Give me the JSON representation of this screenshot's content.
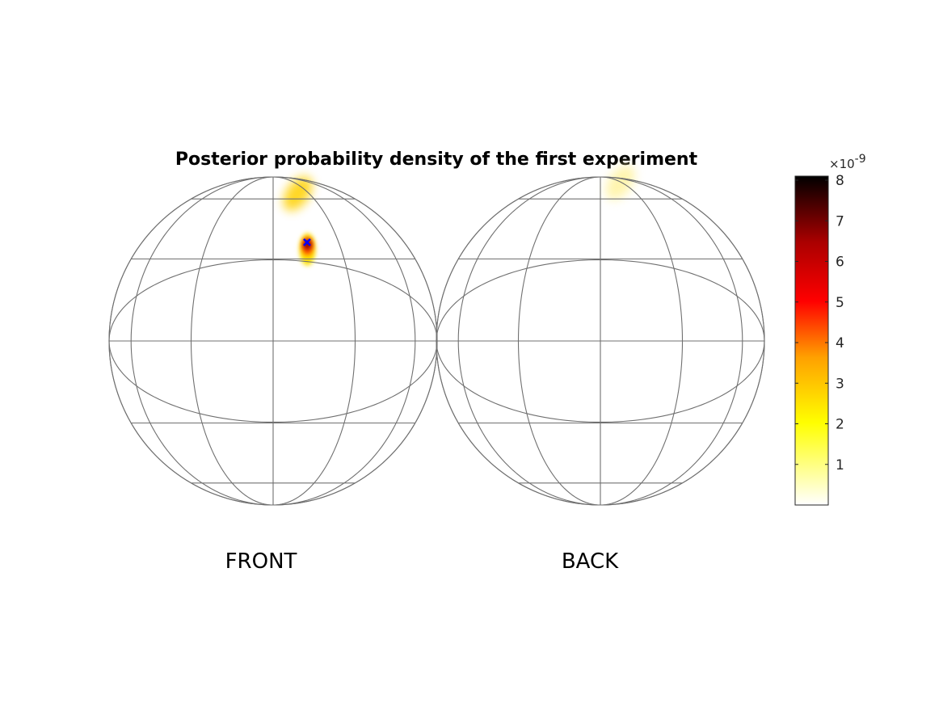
{
  "chart_data": {
    "type": "heatmap",
    "title": "Posterior probability density of the first experiment",
    "panels": [
      {
        "name": "FRONT",
        "label": "FRONT"
      },
      {
        "name": "BACK",
        "label": "BACK"
      }
    ],
    "colorbar": {
      "colormap": "hot (reversed)",
      "range": [
        0,
        8.1
      ],
      "ticks": [
        1,
        2,
        3,
        4,
        5,
        6,
        7,
        8
      ],
      "tick_labels": [
        "1",
        "2",
        "3",
        "4",
        "5",
        "6",
        "7",
        "8"
      ],
      "exponent_label": "×10",
      "exponent_power": "-9"
    },
    "density_blobs": [
      {
        "panel": "FRONT",
        "lon": 15,
        "lat": 36,
        "peak": 8.0,
        "spread": "small"
      },
      {
        "panel": "FRONT",
        "lon": 20,
        "lat": 64,
        "peak": 2.2,
        "spread": "medium"
      },
      {
        "panel": "BACK",
        "lon": 28,
        "lat": 75,
        "peak": 0.7,
        "spread": "medium"
      }
    ],
    "marker": {
      "panel": "FRONT",
      "lon": 15,
      "lat": 37,
      "symbol": "x",
      "color": "#0000ff"
    },
    "grid": true,
    "legend": "right"
  }
}
